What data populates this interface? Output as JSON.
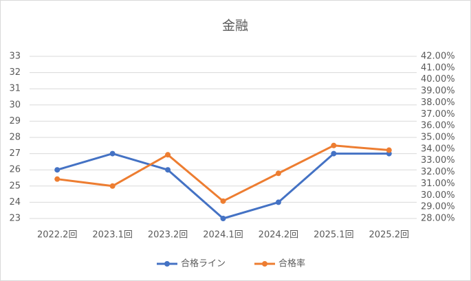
{
  "chart_data": {
    "type": "line",
    "title": "金融",
    "categories": [
      "2022.2回",
      "2023.1回",
      "2023.2回",
      "2024.1回",
      "2024.2回",
      "2025.1回",
      "2025.2回"
    ],
    "series": [
      {
        "name": "合格ライン",
        "color": "#4472c4",
        "values": [
          26,
          27,
          26,
          23,
          24,
          27,
          27
        ]
      },
      {
        "name": "合格率",
        "color": "#ed7d31",
        "axis": "y2",
        "values": [
          31.4,
          30.8,
          33.5,
          29.5,
          31.9,
          34.3,
          33.9
        ]
      }
    ],
    "ylim": [
      23,
      33
    ],
    "yticks": [
      23,
      24,
      25,
      26,
      27,
      28,
      29,
      30,
      31,
      32,
      33
    ],
    "y2lim": [
      28,
      42
    ],
    "y2ticks": [
      {
        "value": 28,
        "label": "28.00%"
      },
      {
        "value": 29,
        "label": "29.00%"
      },
      {
        "value": 30,
        "label": "30.00%"
      },
      {
        "value": 31,
        "label": "31.00%"
      },
      {
        "value": 32,
        "label": "32.00%"
      },
      {
        "value": 33,
        "label": "33.00%"
      },
      {
        "value": 34,
        "label": "34.00%"
      },
      {
        "value": 35,
        "label": "35.00%"
      },
      {
        "value": 36,
        "label": "36.00%"
      },
      {
        "value": 37,
        "label": "37.00%"
      },
      {
        "value": 38,
        "label": "38.00%"
      },
      {
        "value": 39,
        "label": "39.00%"
      },
      {
        "value": 40,
        "label": "40.00%"
      },
      {
        "value": 41,
        "label": "41.00%"
      },
      {
        "value": 42,
        "label": "42.00%"
      }
    ],
    "grid": true,
    "legend": "bottom"
  }
}
